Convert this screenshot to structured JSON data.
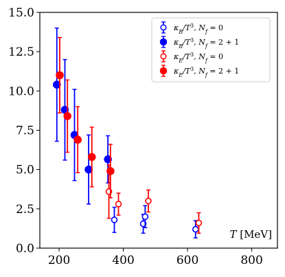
{
  "chart_data": {
    "type": "scatter",
    "xlim": [
      140,
      880
    ],
    "ylim": [
      0,
      15
    ],
    "x_ticks": [
      200,
      400,
      600,
      800
    ],
    "y_ticks": [
      0.0,
      2.5,
      5.0,
      7.5,
      10.0,
      12.5,
      15.0
    ],
    "x_tick_labels": [
      "200",
      "400",
      "600",
      "800"
    ],
    "y_tick_labels": [
      "0.0",
      "2.5",
      "5.0",
      "7.5",
      "10.0",
      "12.5",
      "15.0"
    ],
    "xlabel": "T [MeV]",
    "ylabel": "",
    "grid": false,
    "legend_position": "top-right",
    "series": [
      {
        "name": "κ_B/T³, N_f = 0",
        "color": "#0000ff",
        "marker": "open-circle",
        "points": [
          {
            "x": 372,
            "y": 1.8,
            "err": 0.8
          },
          {
            "x": 462,
            "y": 1.55,
            "err": 0.6
          },
          {
            "x": 468,
            "y": 2.0,
            "err": 0.7
          },
          {
            "x": 625,
            "y": 1.2,
            "err": 0.55
          }
        ]
      },
      {
        "name": "κ_B/T³, N_f = 2 + 1",
        "color": "#0000ff",
        "marker": "filled-circle",
        "points": [
          {
            "x": 193,
            "y": 10.4,
            "err": 3.6
          },
          {
            "x": 218,
            "y": 8.8,
            "err": 3.2
          },
          {
            "x": 248,
            "y": 7.2,
            "err": 2.9
          },
          {
            "x": 292,
            "y": 5.0,
            "err": 2.2
          },
          {
            "x": 352,
            "y": 5.65,
            "err": 1.5
          }
        ]
      },
      {
        "name": "κ_E/T³, N_f = 0",
        "color": "#ff0000",
        "marker": "open-circle",
        "points": [
          {
            "x": 355,
            "y": 3.6,
            "err": 1.7
          },
          {
            "x": 385,
            "y": 2.8,
            "err": 0.7
          },
          {
            "x": 478,
            "y": 3.0,
            "err": 0.7
          },
          {
            "x": 635,
            "y": 1.6,
            "err": 0.65
          }
        ]
      },
      {
        "name": "κ_E/T³, N_f = 2 + 1",
        "color": "#ff0000",
        "marker": "filled-circle",
        "points": [
          {
            "x": 202,
            "y": 11.0,
            "err": 2.4
          },
          {
            "x": 226,
            "y": 8.4,
            "err": 2.3
          },
          {
            "x": 258,
            "y": 6.9,
            "err": 2.1
          },
          {
            "x": 302,
            "y": 5.8,
            "err": 1.9
          },
          {
            "x": 360,
            "y": 4.9,
            "err": 1.7
          }
        ]
      }
    ],
    "legend_entries": [
      {
        "label": "κ",
        "sub": "B",
        "mid": "/T",
        "sup": "3",
        "tail": ",  N",
        "fsub": "f",
        "eq": " = 0"
      },
      {
        "label": "κ",
        "sub": "B",
        "mid": "/T",
        "sup": "3",
        "tail": ",  N",
        "fsub": "f",
        "eq": " = 2 + 1"
      },
      {
        "label": "κ",
        "sub": "E",
        "mid": "/T",
        "sup": "3",
        "tail": ",  N",
        "fsub": "f",
        "eq": " = 0"
      },
      {
        "label": "κ",
        "sub": "E",
        "mid": "/T",
        "sup": "3",
        "tail": ",  N",
        "fsub": "f",
        "eq": " = 2 + 1"
      }
    ],
    "xlabel_parts": {
      "var": "T",
      "unit": "[MeV]"
    }
  }
}
